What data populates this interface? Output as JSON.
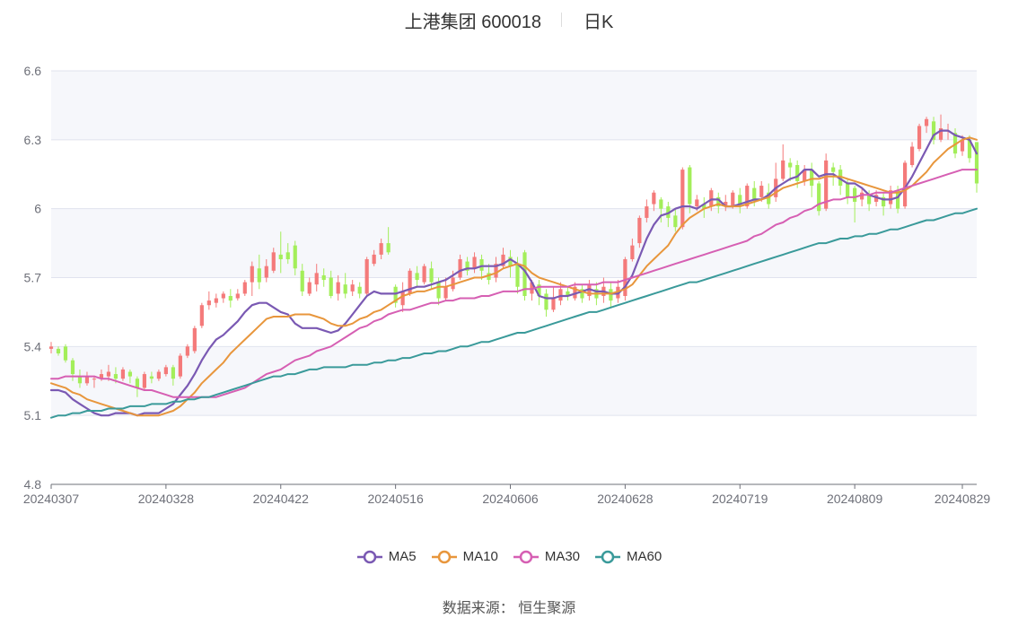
{
  "title": {
    "name": "上港集团 600018",
    "period": "日K"
  },
  "source": {
    "label": "数据来源：",
    "value": "恒生聚源"
  },
  "colors": {
    "up": "#f47a7a",
    "down": "#a3ee5a",
    "MA5": "#7a59b3",
    "MA10": "#e8963c",
    "MA30": "#d65fb3",
    "MA60": "#3a9a9a",
    "band": "#f6f7fb",
    "grid": "#e0e3ee",
    "axis": "#6e7079"
  },
  "chart_data": {
    "type": "candlestick",
    "y_axis": {
      "min": 4.8,
      "max": 6.6,
      "ticks": [
        "4.8",
        "5.1",
        "5.4",
        "5.7",
        "6",
        "6.3",
        "6.6"
      ]
    },
    "x_tick_labels": [
      "20240307",
      "20240328",
      "20240422",
      "20240516",
      "20240606",
      "20240628",
      "20240719",
      "20240809",
      "20240829"
    ],
    "x_tick_indices": [
      0,
      16,
      32,
      48,
      64,
      80,
      96,
      112,
      127
    ],
    "grid": true,
    "legend_position": "bottom",
    "candles": [
      [
        5.39,
        5.4,
        5.37,
        5.42
      ],
      [
        5.39,
        5.37,
        5.36,
        5.4
      ],
      [
        5.4,
        5.34,
        5.33,
        5.41
      ],
      [
        5.34,
        5.28,
        5.25,
        5.35
      ],
      [
        5.27,
        5.24,
        5.22,
        5.3
      ],
      [
        5.24,
        5.27,
        5.23,
        5.29
      ],
      [
        5.26,
        5.26,
        5.22,
        5.27
      ],
      [
        5.26,
        5.28,
        5.25,
        5.3
      ],
      [
        5.27,
        5.29,
        5.25,
        5.32
      ],
      [
        5.28,
        5.26,
        5.24,
        5.31
      ],
      [
        5.26,
        5.3,
        5.25,
        5.31
      ],
      [
        5.29,
        5.27,
        5.24,
        5.3
      ],
      [
        5.26,
        5.22,
        5.18,
        5.27
      ],
      [
        5.22,
        5.28,
        5.21,
        5.29
      ],
      [
        5.27,
        5.26,
        5.24,
        5.29
      ],
      [
        5.26,
        5.29,
        5.25,
        5.3
      ],
      [
        5.28,
        5.31,
        5.27,
        5.32
      ],
      [
        5.31,
        5.26,
        5.23,
        5.32
      ],
      [
        5.27,
        5.36,
        5.26,
        5.37
      ],
      [
        5.36,
        5.4,
        5.35,
        5.41
      ],
      [
        5.38,
        5.48,
        5.37,
        5.49
      ],
      [
        5.49,
        5.58,
        5.48,
        5.59
      ],
      [
        5.58,
        5.6,
        5.56,
        5.64
      ],
      [
        5.59,
        5.61,
        5.57,
        5.63
      ],
      [
        5.61,
        5.63,
        5.59,
        5.64
      ],
      [
        5.62,
        5.6,
        5.57,
        5.65
      ],
      [
        5.61,
        5.63,
        5.6,
        5.65
      ],
      [
        5.63,
        5.68,
        5.62,
        5.69
      ],
      [
        5.68,
        5.75,
        5.62,
        5.77
      ],
      [
        5.74,
        5.68,
        5.65,
        5.8
      ],
      [
        5.7,
        5.75,
        5.68,
        5.78
      ],
      [
        5.73,
        5.81,
        5.72,
        5.83
      ],
      [
        5.8,
        5.78,
        5.72,
        5.9
      ],
      [
        5.81,
        5.78,
        5.76,
        5.85
      ],
      [
        5.84,
        5.74,
        5.71,
        5.86
      ],
      [
        5.73,
        5.64,
        5.62,
        5.76
      ],
      [
        5.63,
        5.68,
        5.62,
        5.7
      ],
      [
        5.67,
        5.72,
        5.64,
        5.76
      ],
      [
        5.71,
        5.69,
        5.66,
        5.74
      ],
      [
        5.7,
        5.62,
        5.61,
        5.73
      ],
      [
        5.63,
        5.68,
        5.6,
        5.71
      ],
      [
        5.67,
        5.63,
        5.61,
        5.72
      ],
      [
        5.64,
        5.67,
        5.62,
        5.69
      ],
      [
        5.66,
        5.63,
        5.61,
        5.68
      ],
      [
        5.63,
        5.78,
        5.62,
        5.79
      ],
      [
        5.76,
        5.8,
        5.75,
        5.82
      ],
      [
        5.8,
        5.85,
        5.78,
        5.87
      ],
      [
        5.85,
        5.81,
        5.8,
        5.92
      ],
      [
        5.66,
        5.59,
        5.57,
        5.67
      ],
      [
        5.58,
        5.64,
        5.55,
        5.68
      ],
      [
        5.63,
        5.73,
        5.62,
        5.74
      ],
      [
        5.72,
        5.69,
        5.66,
        5.75
      ],
      [
        5.68,
        5.75,
        5.67,
        5.76
      ],
      [
        5.74,
        5.68,
        5.65,
        5.77
      ],
      [
        5.68,
        5.61,
        5.58,
        5.7
      ],
      [
        5.61,
        5.66,
        5.6,
        5.7
      ],
      [
        5.65,
        5.7,
        5.64,
        5.73
      ],
      [
        5.7,
        5.78,
        5.69,
        5.8
      ],
      [
        5.77,
        5.73,
        5.71,
        5.79
      ],
      [
        5.74,
        5.79,
        5.72,
        5.81
      ],
      [
        5.78,
        5.73,
        5.69,
        5.8
      ],
      [
        5.72,
        5.69,
        5.67,
        5.76
      ],
      [
        5.7,
        5.76,
        5.68,
        5.79
      ],
      [
        5.75,
        5.8,
        5.74,
        5.83
      ],
      [
        5.79,
        5.75,
        5.7,
        5.82
      ],
      [
        5.76,
        5.66,
        5.63,
        5.79
      ],
      [
        5.81,
        5.62,
        5.6,
        5.82
      ],
      [
        5.63,
        5.68,
        5.6,
        5.69
      ],
      [
        5.67,
        5.62,
        5.58,
        5.69
      ],
      [
        5.63,
        5.56,
        5.53,
        5.65
      ],
      [
        5.56,
        5.61,
        5.55,
        5.66
      ],
      [
        5.6,
        5.65,
        5.58,
        5.68
      ],
      [
        5.64,
        5.62,
        5.6,
        5.66
      ],
      [
        5.61,
        5.66,
        5.6,
        5.68
      ],
      [
        5.65,
        5.61,
        5.59,
        5.67
      ],
      [
        5.62,
        5.67,
        5.6,
        5.69
      ],
      [
        5.65,
        5.61,
        5.58,
        5.68
      ],
      [
        5.62,
        5.66,
        5.59,
        5.7
      ],
      [
        5.65,
        5.6,
        5.57,
        5.68
      ],
      [
        5.61,
        5.66,
        5.59,
        5.69
      ],
      [
        5.62,
        5.78,
        5.6,
        5.79
      ],
      [
        5.78,
        5.84,
        5.77,
        5.87
      ],
      [
        5.85,
        5.96,
        5.83,
        5.97
      ],
      [
        5.96,
        6.01,
        5.94,
        6.04
      ],
      [
        6.02,
        6.07,
        5.99,
        6.08
      ],
      [
        6.04,
        6.0,
        5.94,
        6.05
      ],
      [
        6.01,
        5.96,
        5.92,
        6.03
      ],
      [
        5.97,
        5.92,
        5.9,
        6.0
      ],
      [
        5.92,
        6.17,
        5.91,
        6.18
      ],
      [
        6.18,
        6.02,
        5.98,
        6.19
      ],
      [
        6.01,
        6.04,
        5.99,
        6.06
      ],
      [
        6.02,
        6.0,
        5.96,
        6.05
      ],
      [
        6.01,
        6.08,
        5.99,
        6.09
      ],
      [
        6.05,
        6.01,
        5.98,
        6.07
      ],
      [
        6.01,
        6.03,
        5.99,
        6.06
      ],
      [
        6.01,
        6.07,
        6.0,
        6.08
      ],
      [
        6.06,
        6.01,
        5.98,
        6.09
      ],
      [
        6.01,
        6.1,
        6.0,
        6.11
      ],
      [
        6.09,
        6.04,
        6.01,
        6.12
      ],
      [
        6.05,
        6.1,
        6.03,
        6.12
      ],
      [
        6.07,
        6.02,
        6.0,
        6.11
      ],
      [
        6.05,
        6.13,
        6.03,
        6.2
      ],
      [
        6.13,
        6.21,
        6.12,
        6.28
      ],
      [
        6.2,
        6.18,
        6.12,
        6.22
      ],
      [
        6.19,
        6.12,
        6.09,
        6.21
      ],
      [
        6.12,
        6.17,
        6.1,
        6.19
      ],
      [
        6.17,
        6.1,
        6.05,
        6.2
      ],
      [
        6.11,
        5.99,
        5.97,
        6.12
      ],
      [
        6.0,
        6.21,
        5.99,
        6.24
      ],
      [
        6.18,
        6.16,
        6.1,
        6.2
      ],
      [
        6.17,
        6.1,
        6.06,
        6.19
      ],
      [
        6.11,
        6.05,
        6.02,
        6.13
      ],
      [
        6.09,
        6.03,
        5.94,
        6.1
      ],
      [
        6.04,
        6.07,
        6.01,
        6.09
      ],
      [
        6.06,
        6.02,
        5.99,
        6.08
      ],
      [
        6.03,
        6.06,
        6.01,
        6.08
      ],
      [
        6.05,
        6.01,
        5.97,
        6.07
      ],
      [
        6.02,
        6.08,
        6.0,
        6.1
      ],
      [
        6.08,
        6.0,
        5.98,
        6.1
      ],
      [
        6.01,
        6.2,
        6.0,
        6.21
      ],
      [
        6.19,
        6.27,
        6.18,
        6.29
      ],
      [
        6.26,
        6.36,
        6.25,
        6.37
      ],
      [
        6.36,
        6.39,
        6.33,
        6.4
      ],
      [
        6.38,
        6.3,
        6.28,
        6.4
      ],
      [
        6.3,
        6.35,
        6.29,
        6.41
      ],
      [
        6.34,
        6.34,
        6.3,
        6.37
      ],
      [
        6.33,
        6.24,
        6.22,
        6.35
      ],
      [
        6.25,
        6.3,
        6.23,
        6.32
      ],
      [
        6.3,
        6.22,
        6.2,
        6.32
      ],
      [
        6.29,
        6.11,
        6.07,
        6.29
      ]
    ],
    "series": [
      {
        "name": "MA5",
        "values": [
          5.21,
          5.21,
          5.2,
          5.17,
          5.15,
          5.13,
          5.11,
          5.1,
          5.1,
          5.11,
          5.11,
          5.11,
          5.1,
          5.11,
          5.11,
          5.11,
          5.13,
          5.15,
          5.19,
          5.23,
          5.28,
          5.34,
          5.39,
          5.43,
          5.45,
          5.48,
          5.51,
          5.55,
          5.58,
          5.59,
          5.59,
          5.57,
          5.55,
          5.54,
          5.5,
          5.48,
          5.48,
          5.48,
          5.47,
          5.46,
          5.47,
          5.5,
          5.54,
          5.58,
          5.62,
          5.64,
          5.63,
          5.63,
          5.63,
          5.64,
          5.65,
          5.66,
          5.66,
          5.67,
          5.68,
          5.69,
          5.71,
          5.73,
          5.74,
          5.74,
          5.75,
          5.75,
          5.75,
          5.76,
          5.78,
          5.76,
          5.73,
          5.68,
          5.62,
          5.61,
          5.61,
          5.62,
          5.62,
          5.63,
          5.64,
          5.65,
          5.64,
          5.64,
          5.63,
          5.63,
          5.66,
          5.71,
          5.79,
          5.87,
          5.93,
          5.97,
          5.98,
          6.0,
          6.01,
          6.01,
          6.0,
          6.02,
          6.04,
          6.04,
          6.01,
          6.01,
          6.02,
          6.03,
          6.04,
          6.04,
          6.06,
          6.09,
          6.11,
          6.13,
          6.14,
          6.17,
          6.17,
          6.14,
          6.15,
          6.15,
          6.13,
          6.11,
          6.11,
          6.09,
          6.06,
          6.05,
          6.04,
          6.04,
          6.05,
          6.09,
          6.14,
          6.2,
          6.26,
          6.32,
          6.34,
          6.34,
          6.32,
          6.31,
          6.3,
          6.24
        ]
      },
      {
        "name": "MA10",
        "values": [
          5.24,
          5.23,
          5.22,
          5.2,
          5.19,
          5.17,
          5.16,
          5.15,
          5.14,
          5.13,
          5.12,
          5.11,
          5.1,
          5.1,
          5.1,
          5.1,
          5.11,
          5.12,
          5.14,
          5.17,
          5.2,
          5.24,
          5.27,
          5.3,
          5.33,
          5.37,
          5.4,
          5.43,
          5.46,
          5.49,
          5.52,
          5.53,
          5.53,
          5.53,
          5.54,
          5.54,
          5.54,
          5.53,
          5.52,
          5.5,
          5.49,
          5.49,
          5.5,
          5.52,
          5.53,
          5.55,
          5.56,
          5.58,
          5.6,
          5.62,
          5.63,
          5.64,
          5.64,
          5.65,
          5.66,
          5.66,
          5.67,
          5.68,
          5.69,
          5.7,
          5.7,
          5.71,
          5.72,
          5.74,
          5.75,
          5.76,
          5.75,
          5.72,
          5.7,
          5.69,
          5.68,
          5.67,
          5.66,
          5.65,
          5.64,
          5.63,
          5.63,
          5.63,
          5.63,
          5.64,
          5.65,
          5.67,
          5.71,
          5.75,
          5.78,
          5.81,
          5.84,
          5.89,
          5.93,
          5.96,
          5.98,
          6.0,
          6.01,
          6.02,
          6.01,
          6.01,
          6.01,
          6.02,
          6.03,
          6.04,
          6.05,
          6.07,
          6.09,
          6.1,
          6.11,
          6.12,
          6.13,
          6.13,
          6.14,
          6.14,
          6.14,
          6.13,
          6.12,
          6.11,
          6.1,
          6.09,
          6.08,
          6.07,
          6.07,
          6.08,
          6.1,
          6.13,
          6.16,
          6.2,
          6.23,
          6.26,
          6.28,
          6.3,
          6.31,
          6.3
        ]
      },
      {
        "name": "MA30",
        "values": [
          5.26,
          5.26,
          5.27,
          5.27,
          5.27,
          5.27,
          5.27,
          5.26,
          5.26,
          5.25,
          5.24,
          5.23,
          5.22,
          5.21,
          5.21,
          5.2,
          5.19,
          5.18,
          5.18,
          5.18,
          5.18,
          5.18,
          5.18,
          5.18,
          5.19,
          5.2,
          5.21,
          5.22,
          5.24,
          5.26,
          5.28,
          5.29,
          5.3,
          5.32,
          5.34,
          5.35,
          5.36,
          5.38,
          5.39,
          5.4,
          5.42,
          5.44,
          5.46,
          5.48,
          5.49,
          5.51,
          5.52,
          5.54,
          5.55,
          5.56,
          5.56,
          5.57,
          5.58,
          5.59,
          5.59,
          5.6,
          5.6,
          5.61,
          5.61,
          5.61,
          5.62,
          5.62,
          5.63,
          5.64,
          5.64,
          5.64,
          5.65,
          5.65,
          5.66,
          5.66,
          5.66,
          5.66,
          5.66,
          5.67,
          5.67,
          5.67,
          5.67,
          5.68,
          5.68,
          5.68,
          5.69,
          5.7,
          5.71,
          5.72,
          5.73,
          5.74,
          5.75,
          5.76,
          5.77,
          5.78,
          5.79,
          5.8,
          5.81,
          5.82,
          5.83,
          5.84,
          5.85,
          5.86,
          5.88,
          5.89,
          5.91,
          5.93,
          5.94,
          5.96,
          5.97,
          5.99,
          6.0,
          6.02,
          6.03,
          6.04,
          6.04,
          6.05,
          6.05,
          6.06,
          6.06,
          6.07,
          6.07,
          6.07,
          6.08,
          6.09,
          6.1,
          6.11,
          6.12,
          6.13,
          6.14,
          6.15,
          6.16,
          6.17,
          6.17,
          6.17
        ]
      },
      {
        "name": "MA60",
        "values": [
          5.09,
          5.1,
          5.1,
          5.11,
          5.11,
          5.12,
          5.12,
          5.12,
          5.13,
          5.13,
          5.13,
          5.14,
          5.14,
          5.14,
          5.15,
          5.15,
          5.15,
          5.16,
          5.16,
          5.17,
          5.17,
          5.18,
          5.18,
          5.19,
          5.2,
          5.21,
          5.22,
          5.23,
          5.24,
          5.25,
          5.26,
          5.27,
          5.27,
          5.28,
          5.28,
          5.29,
          5.3,
          5.3,
          5.31,
          5.31,
          5.31,
          5.31,
          5.32,
          5.32,
          5.32,
          5.33,
          5.33,
          5.34,
          5.34,
          5.35,
          5.35,
          5.36,
          5.37,
          5.37,
          5.38,
          5.38,
          5.39,
          5.4,
          5.4,
          5.41,
          5.42,
          5.42,
          5.43,
          5.44,
          5.45,
          5.46,
          5.46,
          5.47,
          5.48,
          5.49,
          5.5,
          5.51,
          5.52,
          5.53,
          5.54,
          5.55,
          5.55,
          5.56,
          5.57,
          5.58,
          5.59,
          5.6,
          5.61,
          5.62,
          5.63,
          5.64,
          5.65,
          5.66,
          5.67,
          5.68,
          5.68,
          5.69,
          5.7,
          5.71,
          5.72,
          5.73,
          5.74,
          5.75,
          5.76,
          5.77,
          5.78,
          5.79,
          5.8,
          5.81,
          5.82,
          5.83,
          5.84,
          5.85,
          5.85,
          5.86,
          5.87,
          5.87,
          5.88,
          5.88,
          5.89,
          5.89,
          5.9,
          5.91,
          5.91,
          5.92,
          5.93,
          5.94,
          5.95,
          5.95,
          5.96,
          5.97,
          5.98,
          5.98,
          5.99,
          6.0
        ]
      }
    ]
  }
}
